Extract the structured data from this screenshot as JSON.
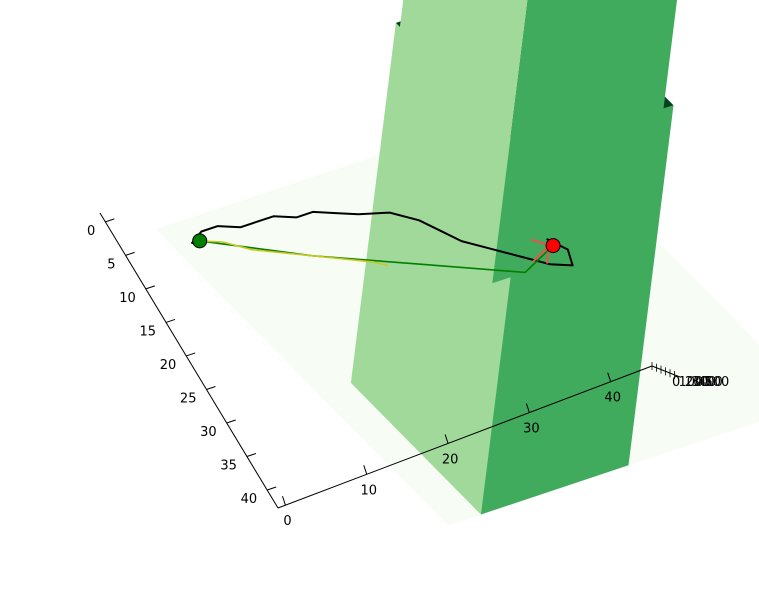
{
  "chart_data": {
    "type": "3d-surface-with-paths",
    "title": "",
    "x_axis": {
      "label": "",
      "ticks": [
        "0",
        "5",
        "10",
        "15",
        "20",
        "25",
        "30",
        "35",
        "40"
      ],
      "range": [
        0,
        43
      ]
    },
    "y_axis": {
      "label": "",
      "ticks": [
        "0",
        "10",
        "20",
        "30",
        "40"
      ],
      "range": [
        0,
        43
      ]
    },
    "z_axis": {
      "label": "",
      "ticks": [
        "0",
        "100",
        "200",
        "300",
        "400",
        "500"
      ],
      "range": [
        0,
        500
      ]
    },
    "obstacles": [
      {
        "name": "",
        "a0": 23,
        "a1": 43,
        "b0": 2,
        "b1": 20,
        "height": 500
      },
      {
        "name": "",
        "a0": 0,
        "a1": 17,
        "b0": 24,
        "b1": 43,
        "height": 500
      }
    ],
    "paths": [
      {
        "name": "",
        "color": "#000000",
        "points": [
          [
            1,
            0
          ],
          [
            0,
            2
          ],
          [
            0,
            4
          ],
          [
            1,
            6
          ],
          [
            1,
            8
          ],
          [
            1,
            10
          ],
          [
            2,
            12
          ],
          [
            2,
            14
          ],
          [
            3,
            16
          ],
          [
            4,
            18
          ],
          [
            5,
            21
          ],
          [
            7,
            23
          ],
          [
            9,
            24
          ],
          [
            11,
            25
          ],
          [
            13,
            27
          ],
          [
            15,
            29
          ],
          [
            17,
            31
          ],
          [
            18,
            33
          ],
          [
            16,
            34
          ],
          [
            14,
            33
          ]
        ]
      },
      {
        "name": "",
        "color": "#008000",
        "points": [
          [
            1,
            1
          ],
          [
            7,
            10
          ],
          [
            12,
            19
          ],
          [
            17,
            28
          ],
          [
            15,
            33
          ]
        ]
      },
      {
        "name": "",
        "color": "#c8c820",
        "points": [
          [
            1,
            1
          ],
          [
            2,
            3
          ],
          [
            4,
            5
          ],
          [
            10,
            15
          ],
          [
            11,
            16
          ]
        ]
      }
    ],
    "start": {
      "a": 1,
      "b": 1,
      "color": "#008000"
    },
    "goal": {
      "a": 15,
      "b": 33,
      "color": "#ff0000"
    },
    "colors": {
      "ground": "#f7fcf5",
      "obstacle_top": "#00441b",
      "obstacle_side_light": "#a1d99b",
      "obstacle_side_mid": "#41ab5d"
    },
    "grid": false,
    "legend": false
  }
}
